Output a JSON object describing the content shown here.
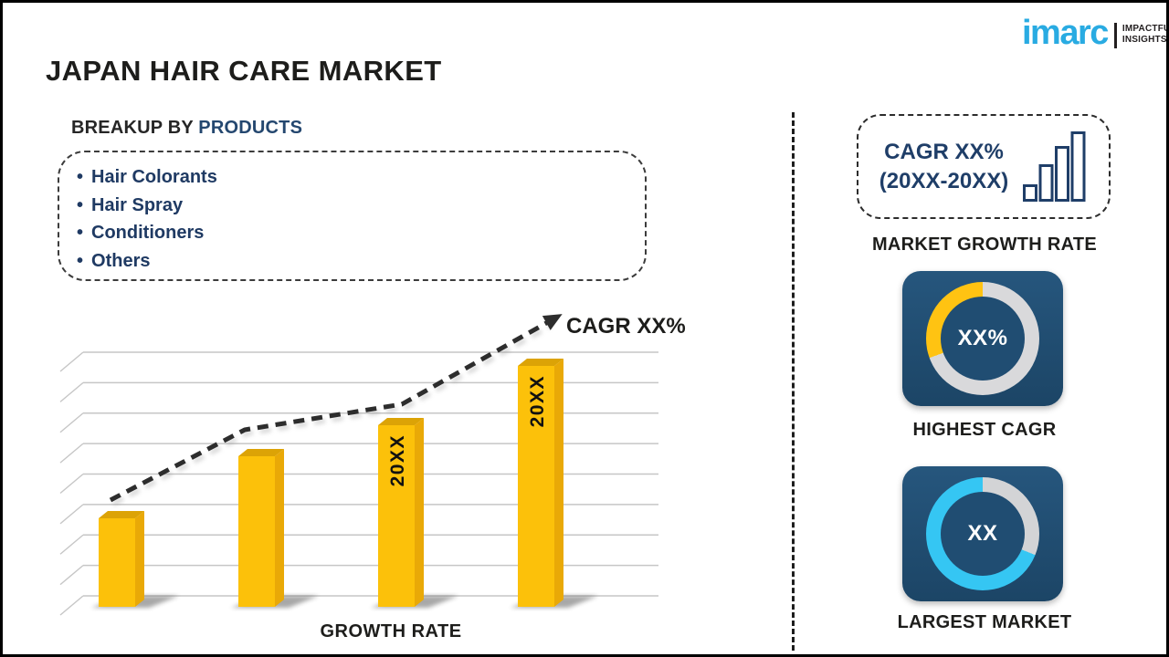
{
  "header": {
    "title": "JAPAN HAIR CARE MARKET",
    "title_color": "#1d1d1b"
  },
  "logo": {
    "brand": "imarc",
    "brand_color": "#29ABE2",
    "tagline_line1": "IMPACTFUL",
    "tagline_line2": "INSIGHTS",
    "tagline_color": "#231F20"
  },
  "breakup": {
    "heading_prefix": "BREAKUP BY ",
    "heading_highlight": "PRODUCTS",
    "highlight_color": "#24476F",
    "bullet": "•",
    "items": [
      "Hair Colorants",
      "Hair Spray",
      "Conditioners",
      "Others"
    ],
    "text_color": "#1F3A63"
  },
  "chart_data": [
    {
      "type": "bar",
      "title": "",
      "xlabel": "GROWTH RATE",
      "ylabel": "",
      "categories": [
        "",
        "",
        "",
        ""
      ],
      "values": [
        97,
        165,
        199,
        264
      ],
      "bar_labels": [
        "",
        "",
        "20XX",
        "20XX"
      ],
      "gridlines": 9,
      "grid": true,
      "legend": false,
      "bar_color_front": "#FCC10A",
      "bar_color_side": "#E9A907",
      "bar_color_top": "#DCA306",
      "trend": {
        "label": "CAGR XX%",
        "color": "#2d2d2d",
        "points": [
          [
            63,
            215
          ],
          [
            210,
            138
          ],
          [
            382,
            110
          ],
          [
            542,
            20
          ]
        ]
      }
    },
    {
      "type": "donut",
      "card_label": "HIGHEST CAGR",
      "center_text": "XX%",
      "track_color": "#D9D9DB",
      "accent_color": "#FFC312",
      "accent_start_deg": 250,
      "accent_end_deg": 360
    },
    {
      "type": "donut",
      "card_label": "LARGEST MARKET",
      "center_text": "XX",
      "track_color": "#D3D4D6",
      "accent_color": "#35C6F3",
      "accent_start_deg": 112,
      "accent_end_deg": 360
    }
  ],
  "right_panel": {
    "cagr_box": {
      "line1": "CAGR XX%",
      "line2": "(20XX-20XX)",
      "text_color": "#1F3E68",
      "icon": "growth-bars-icon",
      "icon_bar_heights": [
        16,
        38,
        58,
        74
      ]
    },
    "market_growth_rate_label": "MARKET GROWTH RATE"
  }
}
